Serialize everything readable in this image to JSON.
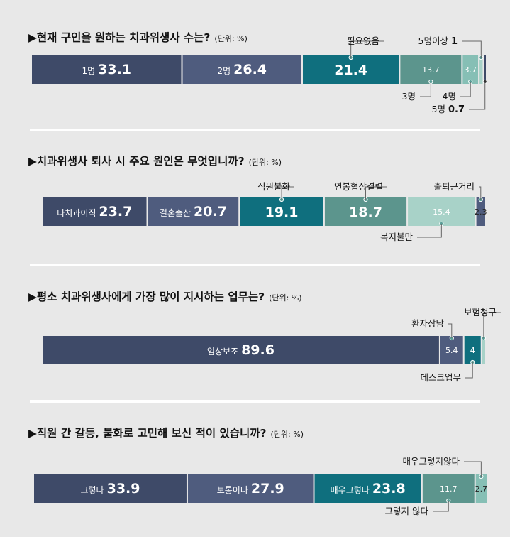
{
  "units_label": "(단위: %)",
  "colors": {
    "navy": "#3e4a68",
    "slate": "#4f5c7e",
    "teal": "#0f6f7e",
    "sage": "#5c958d",
    "mint": "#86bfb5",
    "pale": "#a8d2c8",
    "rule": "#ffffff",
    "leader": "#666666"
  },
  "chart_data": [
    {
      "type": "bar",
      "stacked": true,
      "title": "▶현재 구인을 원하는 치과위생사 수는?",
      "categories": [
        "1명",
        "2명",
        "필요없음",
        "3명",
        "4명",
        "5명이상",
        "5명"
      ],
      "values": [
        33.1,
        26.4,
        21.4,
        13.7,
        3.7,
        1,
        0.7
      ],
      "xlim": [
        0,
        100
      ],
      "legend": "none"
    },
    {
      "type": "bar",
      "stacked": true,
      "title": "▶치과위생사 퇴사 시 주요 원인은 무엇입니까?",
      "categories": [
        "타치과이직",
        "결혼출산",
        "직원불화",
        "연봉협상결렬",
        "복지불만",
        "출퇴근거리"
      ],
      "values": [
        23.7,
        20.7,
        19.1,
        18.7,
        15.4,
        2.3
      ],
      "xlim": [
        0,
        100
      ],
      "legend": "none"
    },
    {
      "type": "bar",
      "stacked": true,
      "title": "▶평소 치과위생사에게 가장 많이 지시하는 업무는?",
      "categories": [
        "임상보조",
        "환자상담",
        "데스크업무",
        "보험청구"
      ],
      "values": [
        89.6,
        5.4,
        4,
        1
      ],
      "value_labels": [
        "89.6",
        "5.4",
        "4",
        ""
      ],
      "xlim": [
        0,
        100
      ],
      "legend": "none"
    },
    {
      "type": "bar",
      "stacked": true,
      "title": "▶직원 간 갈등, 불화로 고민해 보신 적이 있습니까?",
      "categories": [
        "그렇다",
        "보통이다",
        "매우그렇다",
        "그렇지 않다",
        "매우그렇지않다"
      ],
      "values": [
        33.9,
        27.9,
        23.8,
        11.7,
        2.7
      ],
      "xlim": [
        0,
        100
      ],
      "legend": "none"
    }
  ]
}
